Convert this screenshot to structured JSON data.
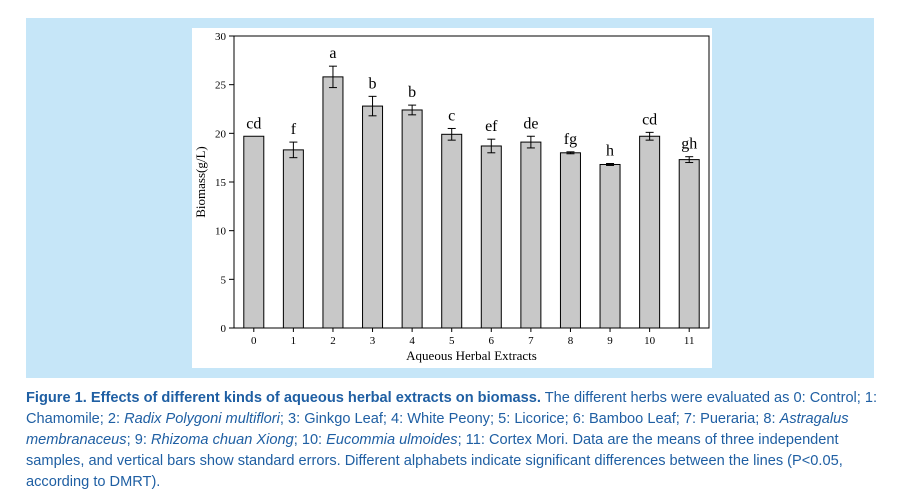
{
  "chart_data": {
    "type": "bar",
    "xlabel": "Aqueous Herbal Extracts",
    "ylabel": "Biomass(g/L)",
    "ylim": [
      0,
      30
    ],
    "yticks": [
      0,
      5,
      10,
      15,
      20,
      25,
      30
    ],
    "categories": [
      "0",
      "1",
      "2",
      "3",
      "4",
      "5",
      "6",
      "7",
      "8",
      "9",
      "10",
      "11"
    ],
    "values": [
      19.7,
      18.3,
      25.8,
      22.8,
      22.4,
      19.9,
      18.7,
      19.1,
      18.0,
      16.8,
      19.7,
      17.3
    ],
    "errors": [
      0.0,
      0.8,
      1.1,
      1.0,
      0.5,
      0.6,
      0.7,
      0.6,
      0.1,
      0.1,
      0.4,
      0.3
    ],
    "significance_letters": [
      "cd",
      "f",
      "a",
      "b",
      "b",
      "c",
      "ef",
      "de",
      "fg",
      "h",
      "cd",
      "gh"
    ],
    "grid": false,
    "colors": {
      "bar": "#c8c8c8",
      "panel": "#c6e6f8",
      "caption": "#1f5fa3"
    }
  },
  "caption": {
    "title": "Figure 1. Effects of different kinds of aqueous herbal extracts on biomass.",
    "parts": [
      {
        "text": " The different herbs were evaluated as 0: Control; 1: Chamomile; 2: ",
        "italic": false
      },
      {
        "text": "Radix Polygoni multiflori",
        "italic": true
      },
      {
        "text": "; 3: Ginkgo Leaf; 4: White Peony; 5: Licorice; 6: Bamboo Leaf; 7: Pueraria; 8: ",
        "italic": false
      },
      {
        "text": "Astragalus membranaceus",
        "italic": true
      },
      {
        "text": "; 9: ",
        "italic": false
      },
      {
        "text": "Rhizoma chuan Xiong",
        "italic": true
      },
      {
        "text": "; 10: ",
        "italic": false
      },
      {
        "text": "Eucommia ulmoides",
        "italic": true
      },
      {
        "text": "; 11: Cortex Mori. Data are the means of three independent samples, and vertical bars show standard errors. Different alphabets indicate significant differences between the lines (P<0.05, according to DMRT).",
        "italic": false
      }
    ]
  }
}
